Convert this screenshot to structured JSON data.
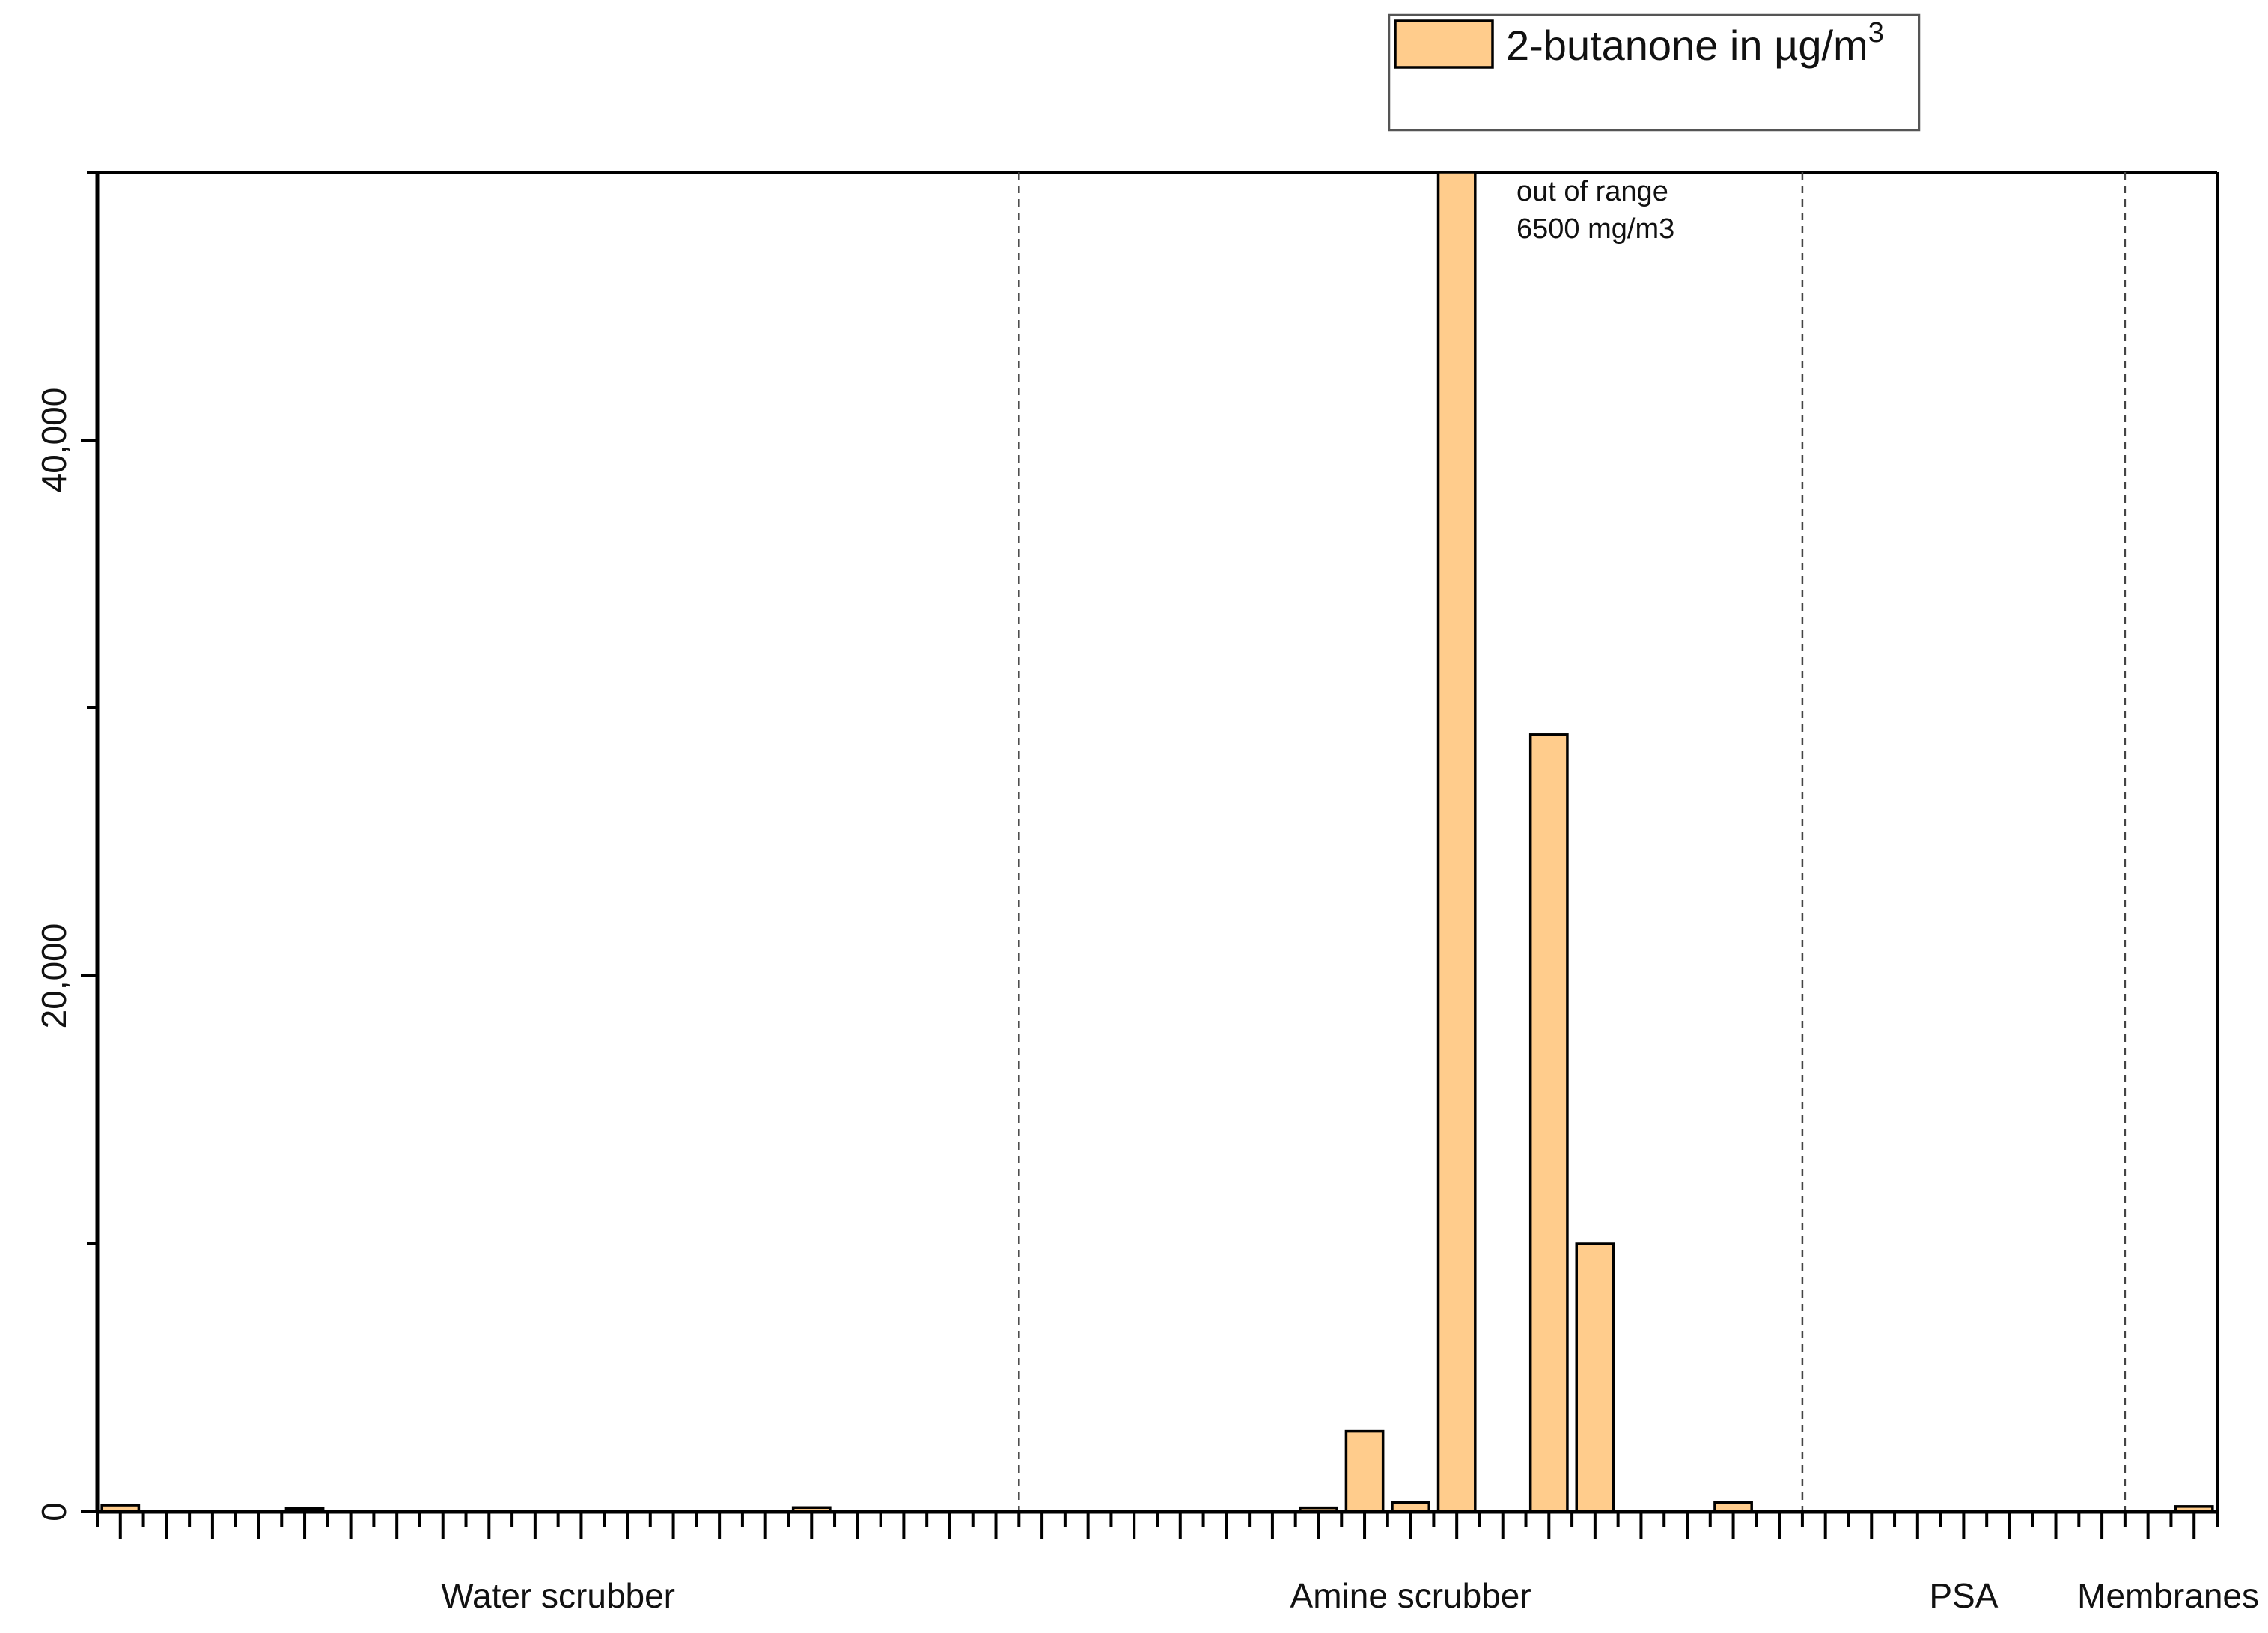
{
  "chart_data": {
    "type": "bar",
    "title": "",
    "xlabel": "",
    "ylabel": "",
    "ylim": [
      0,
      50000
    ],
    "y_ticks": [
      0,
      20000,
      40000
    ],
    "y_tick_labels": [
      "0",
      "20,000",
      "40,000"
    ],
    "bar_color": "#FFCC8C",
    "legend": {
      "placement": "top-right, outside plot",
      "label": "2-butanone in µg/m",
      "label_superscript": "3"
    },
    "annotation": {
      "line1": "out of range",
      "line2": "6500 mg/m3"
    },
    "groups": [
      {
        "label": "Water scrubber",
        "from_slot": 0,
        "to_slot": 20
      },
      {
        "label": "Amine scrubber",
        "from_slot": 20,
        "to_slot": 37
      },
      {
        "label": "PSA",
        "from_slot": 37,
        "to_slot": 44
      },
      {
        "label": "Membranes",
        "from_slot": 44,
        "to_slot": 46
      }
    ],
    "slot_count": 46,
    "bars": [
      {
        "slot": 0,
        "value": 250
      },
      {
        "slot": 4,
        "value": 120
      },
      {
        "slot": 15,
        "value": 160
      },
      {
        "slot": 26,
        "value": 150
      },
      {
        "slot": 27,
        "value": 3000
      },
      {
        "slot": 28,
        "value": 350
      },
      {
        "slot": 29,
        "value": 50000,
        "clipped": true
      },
      {
        "slot": 31,
        "value": 29000
      },
      {
        "slot": 32,
        "value": 10000
      },
      {
        "slot": 35,
        "value": 350
      },
      {
        "slot": 45,
        "value": 200
      }
    ]
  }
}
